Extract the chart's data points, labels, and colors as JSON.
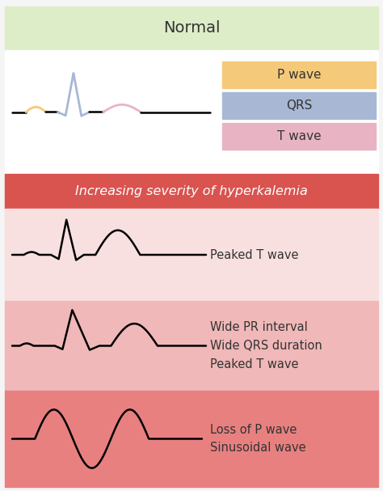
{
  "title_normal": "Normal",
  "title_severity": "Increasing severity of hyperkalemia",
  "bg_normal": "#dcedc8",
  "bg_white": "#ffffff",
  "bg_red_header": "#d9534f",
  "bg_pink1": "#f9e0e0",
  "bg_pink2": "#f0b8b8",
  "bg_pink3": "#e88080",
  "legend_p_wave_color": "#f5c97a",
  "legend_qrs_color": "#a8b8d4",
  "legend_t_wave_color": "#e8b4c4",
  "label1": "P wave",
  "label2": "QRS",
  "label3": "T wave",
  "row1_label": "Peaked T wave",
  "row2_label": "Wide PR interval\nWide QRS duration\nPeaked T wave",
  "row3_label": "Loss of P wave\nSinusoidal wave",
  "font_color_dark": "#333333",
  "font_color_light": "#ffffff",
  "outer_bg": "#f5f5f5"
}
